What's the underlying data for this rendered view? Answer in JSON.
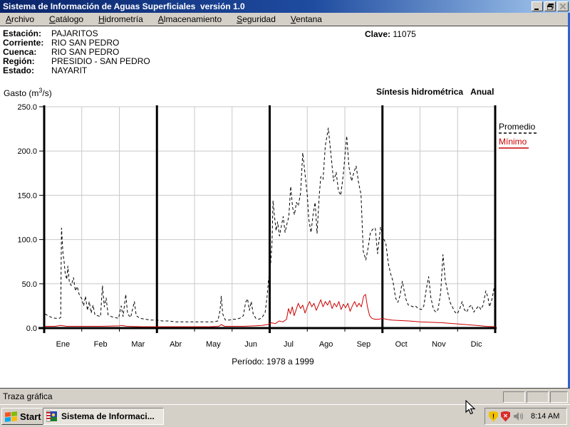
{
  "window": {
    "title": "Sistema de Información de Aguas Superficiales  versión 1.0"
  },
  "menu": {
    "items": [
      {
        "key": "A",
        "rest": "rchivo"
      },
      {
        "key": "C",
        "rest": "atálogo"
      },
      {
        "key": "H",
        "rest": "idrometría"
      },
      {
        "key": "A",
        "rest": "lmacenamiento"
      },
      {
        "key": "S",
        "rest": "eguridad"
      },
      {
        "key": "V",
        "rest": "entana"
      }
    ]
  },
  "station": {
    "rows": [
      {
        "label": "Estación:",
        "value": "PAJARITOS"
      },
      {
        "label": "Corriente:",
        "value": "RIO SAN PEDRO"
      },
      {
        "label": "Cuenca:",
        "value": "RIO SAN PEDRO"
      },
      {
        "label": "Región:",
        "value": "PRESIDIO - SAN PEDRO"
      },
      {
        "label": "Estado:",
        "value": "NAYARIT"
      }
    ],
    "clave_label": "Clave:",
    "clave_value": "11075"
  },
  "chart_header": {
    "ylabel_pre": "Gasto (m",
    "ylabel_sup": "3",
    "ylabel_post": "/s)",
    "title": "Síntesis hidrométrica",
    "mode": "Anual"
  },
  "chart_data": {
    "type": "line",
    "title": "Síntesis hidrométrica Anual",
    "ylabel": "Gasto (m3/s)",
    "caption": "Período: 1978 a 1999",
    "ylim": [
      0,
      250
    ],
    "yticks": [
      0,
      50,
      100,
      150,
      200,
      250
    ],
    "ytick_labels": [
      "0.0",
      "50.0",
      "100.0",
      "150.0",
      "200.0",
      "250.0"
    ],
    "x_months": [
      "Ene",
      "Feb",
      "Mar",
      "Abr",
      "May",
      "Jun",
      "Jul",
      "Ago",
      "Sep",
      "Oct",
      "Nov",
      "Dic"
    ],
    "x_range": [
      0,
      12
    ],
    "quarter_lines": [
      0,
      3,
      6,
      9,
      12
    ],
    "grid": true,
    "legend_position": "right",
    "series": [
      {
        "name": "Promedio",
        "color": "#000000",
        "style": "dashed",
        "points": [
          [
            0.02,
            16
          ],
          [
            0.1,
            14
          ],
          [
            0.2,
            12
          ],
          [
            0.3,
            11
          ],
          [
            0.4,
            11
          ],
          [
            0.44,
            12
          ],
          [
            0.46,
            113
          ],
          [
            0.5,
            84
          ],
          [
            0.53,
            75
          ],
          [
            0.56,
            62
          ],
          [
            0.6,
            55
          ],
          [
            0.63,
            70
          ],
          [
            0.67,
            52
          ],
          [
            0.72,
            48
          ],
          [
            0.78,
            57
          ],
          [
            0.83,
            42
          ],
          [
            0.88,
            47
          ],
          [
            0.93,
            38
          ],
          [
            1.0,
            33
          ],
          [
            1.05,
            25
          ],
          [
            1.1,
            36
          ],
          [
            1.15,
            20
          ],
          [
            1.2,
            30
          ],
          [
            1.25,
            17
          ],
          [
            1.3,
            26
          ],
          [
            1.35,
            15
          ],
          [
            1.42,
            14
          ],
          [
            1.5,
            13
          ],
          [
            1.55,
            48
          ],
          [
            1.6,
            24
          ],
          [
            1.65,
            34
          ],
          [
            1.7,
            15
          ],
          [
            1.78,
            13
          ],
          [
            1.88,
            12
          ],
          [
            1.98,
            11
          ],
          [
            2.05,
            25
          ],
          [
            2.1,
            13
          ],
          [
            2.17,
            38
          ],
          [
            2.22,
            16
          ],
          [
            2.3,
            12
          ],
          [
            2.4,
            30
          ],
          [
            2.45,
            14
          ],
          [
            2.55,
            11
          ],
          [
            2.7,
            10
          ],
          [
            2.85,
            9
          ],
          [
            3.0,
            9
          ],
          [
            3.15,
            8
          ],
          [
            3.3,
            8
          ],
          [
            3.5,
            7
          ],
          [
            3.7,
            7
          ],
          [
            3.9,
            7
          ],
          [
            4.1,
            7
          ],
          [
            4.3,
            7
          ],
          [
            4.5,
            7
          ],
          [
            4.62,
            8
          ],
          [
            4.68,
            20
          ],
          [
            4.71,
            36
          ],
          [
            4.75,
            16
          ],
          [
            4.82,
            9
          ],
          [
            4.92,
            9
          ],
          [
            5.0,
            10
          ],
          [
            5.1,
            10
          ],
          [
            5.2,
            11
          ],
          [
            5.3,
            14
          ],
          [
            5.36,
            29
          ],
          [
            5.41,
            33
          ],
          [
            5.46,
            20
          ],
          [
            5.51,
            30
          ],
          [
            5.56,
            16
          ],
          [
            5.63,
            11
          ],
          [
            5.72,
            10
          ],
          [
            5.8,
            12
          ],
          [
            5.88,
            18
          ],
          [
            5.93,
            35
          ],
          [
            5.97,
            55
          ],
          [
            6.02,
            70
          ],
          [
            6.06,
            95
          ],
          [
            6.09,
            144
          ],
          [
            6.13,
            125
          ],
          [
            6.17,
            110
          ],
          [
            6.21,
            120
          ],
          [
            6.26,
            104
          ],
          [
            6.31,
            115
          ],
          [
            6.36,
            126
          ],
          [
            6.41,
            108
          ],
          [
            6.46,
            118
          ],
          [
            6.51,
            126
          ],
          [
            6.56,
            160
          ],
          [
            6.61,
            136
          ],
          [
            6.66,
            128
          ],
          [
            6.71,
            142
          ],
          [
            6.76,
            138
          ],
          [
            6.82,
            152
          ],
          [
            6.88,
            198
          ],
          [
            6.94,
            174
          ],
          [
            7.0,
            150
          ],
          [
            7.04,
            123
          ],
          [
            7.1,
            108
          ],
          [
            7.16,
            130
          ],
          [
            7.21,
            142
          ],
          [
            7.26,
            107
          ],
          [
            7.32,
            150
          ],
          [
            7.36,
            171
          ],
          [
            7.42,
            168
          ],
          [
            7.48,
            206
          ],
          [
            7.56,
            226
          ],
          [
            7.64,
            192
          ],
          [
            7.7,
            166
          ],
          [
            7.77,
            176
          ],
          [
            7.83,
            155
          ],
          [
            7.89,
            150
          ],
          [
            7.96,
            174
          ],
          [
            8.05,
            217
          ],
          [
            8.11,
            182
          ],
          [
            8.18,
            166
          ],
          [
            8.24,
            176
          ],
          [
            8.3,
            183
          ],
          [
            8.37,
            163
          ],
          [
            8.43,
            151
          ],
          [
            8.49,
            87
          ],
          [
            8.56,
            77
          ],
          [
            8.62,
            91
          ],
          [
            8.68,
            108
          ],
          [
            8.75,
            112
          ],
          [
            8.81,
            113
          ],
          [
            8.87,
            84
          ],
          [
            8.95,
            114
          ],
          [
            9.03,
            101
          ],
          [
            9.09,
            96
          ],
          [
            9.16,
            72
          ],
          [
            9.22,
            61
          ],
          [
            9.28,
            53
          ],
          [
            9.35,
            34
          ],
          [
            9.41,
            29
          ],
          [
            9.47,
            37
          ],
          [
            9.53,
            53
          ],
          [
            9.58,
            42
          ],
          [
            9.63,
            32
          ],
          [
            9.69,
            26
          ],
          [
            9.76,
            25
          ],
          [
            9.82,
            24
          ],
          [
            9.88,
            25
          ],
          [
            9.95,
            22
          ],
          [
            10.04,
            21
          ],
          [
            10.1,
            25
          ],
          [
            10.17,
            45
          ],
          [
            10.23,
            58
          ],
          [
            10.29,
            34
          ],
          [
            10.36,
            21
          ],
          [
            10.42,
            18
          ],
          [
            10.48,
            21
          ],
          [
            10.55,
            40
          ],
          [
            10.61,
            83
          ],
          [
            10.67,
            55
          ],
          [
            10.74,
            40
          ],
          [
            10.8,
            29
          ],
          [
            10.86,
            24
          ],
          [
            10.93,
            18
          ],
          [
            10.99,
            16
          ],
          [
            11.05,
            21
          ],
          [
            11.12,
            30
          ],
          [
            11.18,
            21
          ],
          [
            11.24,
            18
          ],
          [
            11.31,
            24
          ],
          [
            11.37,
            26
          ],
          [
            11.43,
            18
          ],
          [
            11.5,
            22
          ],
          [
            11.56,
            25
          ],
          [
            11.62,
            21
          ],
          [
            11.68,
            26
          ],
          [
            11.75,
            42
          ],
          [
            11.81,
            34
          ],
          [
            11.85,
            24
          ],
          [
            11.91,
            32
          ],
          [
            11.97,
            45
          ]
        ]
      },
      {
        "name": "Mínimo",
        "color": "#cc0000",
        "style": "solid",
        "points": [
          [
            0.02,
            2
          ],
          [
            0.3,
            2
          ],
          [
            0.44,
            3
          ],
          [
            0.6,
            2
          ],
          [
            1.0,
            2
          ],
          [
            1.5,
            2
          ],
          [
            2.0,
            2.5
          ],
          [
            2.05,
            3
          ],
          [
            2.2,
            2
          ],
          [
            2.6,
            1.5
          ],
          [
            3.0,
            1.5
          ],
          [
            3.5,
            1.5
          ],
          [
            4.0,
            1.5
          ],
          [
            4.4,
            1.5
          ],
          [
            4.65,
            2
          ],
          [
            4.71,
            4
          ],
          [
            4.8,
            2
          ],
          [
            5.0,
            2
          ],
          [
            5.3,
            2
          ],
          [
            5.6,
            2.5
          ],
          [
            5.8,
            3
          ],
          [
            5.95,
            4
          ],
          [
            6.05,
            6
          ],
          [
            6.15,
            5
          ],
          [
            6.25,
            8
          ],
          [
            6.35,
            7
          ],
          [
            6.45,
            10
          ],
          [
            6.5,
            22
          ],
          [
            6.55,
            16
          ],
          [
            6.6,
            24
          ],
          [
            6.65,
            14
          ],
          [
            6.7,
            20
          ],
          [
            6.76,
            28
          ],
          [
            6.82,
            22
          ],
          [
            6.88,
            26
          ],
          [
            6.94,
            17
          ],
          [
            7.0,
            24
          ],
          [
            7.06,
            30
          ],
          [
            7.12,
            24
          ],
          [
            7.18,
            28
          ],
          [
            7.24,
            20
          ],
          [
            7.3,
            26
          ],
          [
            7.36,
            32
          ],
          [
            7.42,
            24
          ],
          [
            7.48,
            30
          ],
          [
            7.54,
            26
          ],
          [
            7.6,
            31
          ],
          [
            7.66,
            22
          ],
          [
            7.72,
            28
          ],
          [
            7.78,
            24
          ],
          [
            7.84,
            30
          ],
          [
            7.9,
            21
          ],
          [
            7.96,
            27
          ],
          [
            8.02,
            23
          ],
          [
            8.08,
            28
          ],
          [
            8.14,
            19
          ],
          [
            8.2,
            25
          ],
          [
            8.26,
            30
          ],
          [
            8.32,
            24
          ],
          [
            8.38,
            28
          ],
          [
            8.44,
            24
          ],
          [
            8.5,
            36
          ],
          [
            8.55,
            38
          ],
          [
            8.6,
            24
          ],
          [
            8.66,
            14
          ],
          [
            8.72,
            11
          ],
          [
            8.8,
            10
          ],
          [
            8.9,
            10
          ],
          [
            9.0,
            11
          ],
          [
            9.1,
            10
          ],
          [
            9.25,
            9
          ],
          [
            9.45,
            8.5
          ],
          [
            9.7,
            8
          ],
          [
            10.0,
            7
          ],
          [
            10.3,
            6.5
          ],
          [
            10.6,
            6
          ],
          [
            10.9,
            5
          ],
          [
            11.2,
            4
          ],
          [
            11.5,
            3
          ],
          [
            11.75,
            2
          ],
          [
            12.0,
            1.5
          ]
        ]
      }
    ]
  },
  "statusbar": {
    "text": "Traza gráfica"
  },
  "taskbar": {
    "start_label": "Start",
    "task_label": "Sistema de Informaci...",
    "clock": "8:14 AM"
  }
}
